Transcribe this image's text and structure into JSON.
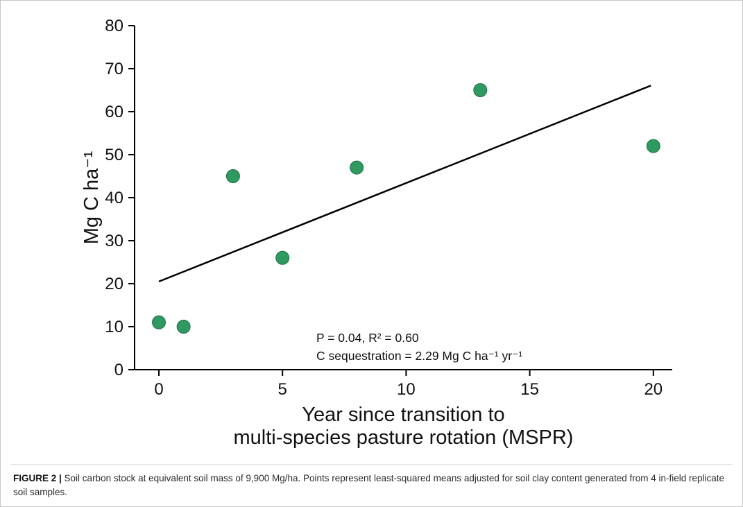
{
  "chart_data": {
    "type": "scatter",
    "title": "",
    "x": [
      0,
      1,
      3,
      5,
      8,
      13,
      20
    ],
    "y": [
      11,
      10,
      45,
      26,
      47,
      65,
      52
    ],
    "xlabel_line1": "Year since transition to",
    "xlabel_line2": "multi-species pasture rotation (MSPR)",
    "ylabel": "Mg C ha⁻¹",
    "xlim": [
      -1,
      21
    ],
    "ylim": [
      0,
      80
    ],
    "xticks": [
      0,
      5,
      10,
      15,
      20
    ],
    "yticks": [
      0,
      10,
      20,
      30,
      40,
      50,
      60,
      70,
      80
    ],
    "grid": "off",
    "regression": {
      "intercept": 20.5,
      "slope": 2.29,
      "x_start": 0,
      "x_end": 19.9
    },
    "annotation_line1": "P = 0.04, R² = 0.60",
    "annotation_line2": "C sequestration = 2.29 Mg C ha⁻¹ yr⁻¹",
    "point_color": "#2f9a5f",
    "point_stroke": "#1e6e43",
    "line_color": "#000000",
    "axis_color": "#000000"
  },
  "caption": {
    "label": "FIGURE 2",
    "separator": " | ",
    "text": "Soil carbon stock at equivalent soil mass of 9,900 Mg/ha. Points represent least-squared means adjusted for soil clay content generated from 4 in-field replicate soil samples."
  }
}
